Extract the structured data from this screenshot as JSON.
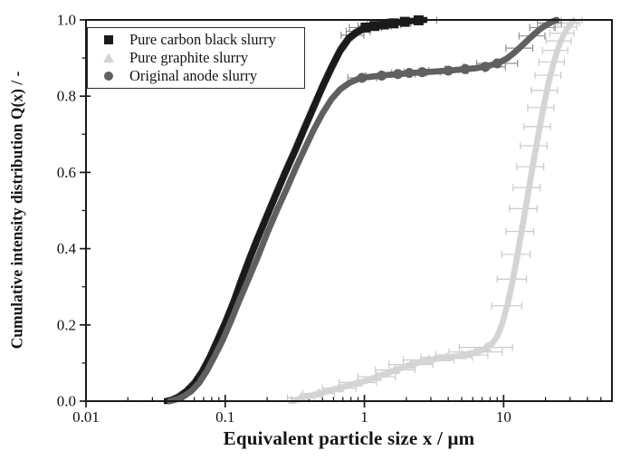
{
  "legend": {
    "items": [
      {
        "label": "Pure carbon black slurry",
        "marker": "square",
        "color": "#1b1b1b"
      },
      {
        "label": "Pure graphite slurry",
        "marker": "triangle",
        "color": "#d4d4d4"
      },
      {
        "label": "Original anode slurry",
        "marker": "circle",
        "color": "#606060"
      }
    ]
  },
  "chart_data": {
    "type": "scatter",
    "title": "",
    "xlabel": "Equivalent particle size x / μm",
    "ylabel": "Cumulative intensity distribution Q(x) / -",
    "x_scale": "log",
    "xlim": [
      0.01,
      60
    ],
    "ylim": [
      0.0,
      1.0
    ],
    "grid": false,
    "legend_position": "top-left",
    "axis_color": "#1a1a1a",
    "x_ticks": {
      "major": [
        {
          "v": 0.01,
          "label": "0.01"
        },
        {
          "v": 0.1,
          "label": "0.1"
        },
        {
          "v": 1,
          "label": "1"
        },
        {
          "v": 10,
          "label": "10"
        }
      ],
      "minor": [
        0.02,
        0.03,
        0.04,
        0.05,
        0.06,
        0.07,
        0.08,
        0.09,
        0.2,
        0.3,
        0.4,
        0.5,
        0.6,
        0.7,
        0.8,
        0.9,
        2,
        3,
        4,
        5,
        6,
        7,
        8,
        9,
        20,
        30,
        40,
        50
      ]
    },
    "y_ticks": {
      "major": [
        {
          "v": 0.0,
          "label": "0.0"
        },
        {
          "v": 0.2,
          "label": "0.2"
        },
        {
          "v": 0.4,
          "label": "0.4"
        },
        {
          "v": 0.6,
          "label": "0.6"
        },
        {
          "v": 0.8,
          "label": "0.8"
        },
        {
          "v": 1.0,
          "label": "1.0"
        }
      ],
      "minor": [
        0.1,
        0.3,
        0.5,
        0.7,
        0.9
      ]
    },
    "series": [
      {
        "name": "Pure carbon black slurry",
        "marker": "square",
        "color": "#1b1b1b",
        "errbar_color": "#8a8a8a",
        "points": [
          [
            0.038,
            0.0
          ],
          [
            0.042,
            0.004
          ],
          [
            0.047,
            0.012
          ],
          [
            0.053,
            0.026
          ],
          [
            0.06,
            0.046
          ],
          [
            0.068,
            0.075
          ],
          [
            0.077,
            0.112
          ],
          [
            0.087,
            0.155
          ],
          [
            0.1,
            0.205
          ],
          [
            0.115,
            0.26
          ],
          [
            0.13,
            0.315
          ],
          [
            0.15,
            0.375
          ],
          [
            0.17,
            0.425
          ],
          [
            0.2,
            0.487
          ],
          [
            0.23,
            0.54
          ],
          [
            0.27,
            0.6
          ],
          [
            0.32,
            0.66
          ],
          [
            0.37,
            0.715
          ],
          [
            0.43,
            0.77
          ],
          [
            0.5,
            0.825
          ],
          [
            0.58,
            0.875
          ],
          [
            0.67,
            0.92
          ],
          [
            0.77,
            0.951
          ],
          [
            0.88,
            0.968
          ],
          [
            1.0,
            0.978
          ],
          [
            1.15,
            0.984
          ],
          [
            1.35,
            0.988
          ],
          [
            1.6,
            0.992
          ],
          [
            1.9,
            0.995
          ],
          [
            2.3,
            0.998
          ],
          [
            2.7,
            1.0
          ]
        ],
        "error_bars": [
          [
            0.82,
            0.96,
            0.68,
            0.99,
            0
          ],
          [
            0.9,
            0.97,
            0.74,
            1.1,
            0
          ],
          [
            1.02,
            0.98,
            0.78,
            1.33,
            1
          ],
          [
            1.18,
            0.984,
            0.9,
            1.56,
            1
          ],
          [
            1.38,
            0.988,
            1.05,
            1.82,
            1
          ],
          [
            1.62,
            0.991,
            1.22,
            2.15,
            1
          ],
          [
            1.95,
            0.995,
            1.45,
            2.6,
            1
          ],
          [
            2.45,
            0.999,
            1.85,
            3.3,
            1
          ]
        ]
      },
      {
        "name": "Pure graphite slurry",
        "marker": "triangle",
        "color": "#d4d4d4",
        "errbar_color": "#c9c9c9",
        "points": [
          [
            0.3,
            0.0
          ],
          [
            0.35,
            0.008
          ],
          [
            0.42,
            0.016
          ],
          [
            0.5,
            0.023
          ],
          [
            0.6,
            0.031
          ],
          [
            0.72,
            0.039
          ],
          [
            0.86,
            0.047
          ],
          [
            1.0,
            0.053
          ],
          [
            1.2,
            0.063
          ],
          [
            1.45,
            0.074
          ],
          [
            1.75,
            0.085
          ],
          [
            2.1,
            0.095
          ],
          [
            2.5,
            0.103
          ],
          [
            3.0,
            0.109
          ],
          [
            3.6,
            0.113
          ],
          [
            4.3,
            0.117
          ],
          [
            5.2,
            0.122
          ],
          [
            6.2,
            0.128
          ],
          [
            7.2,
            0.137
          ],
          [
            8.2,
            0.152
          ],
          [
            9.0,
            0.175
          ],
          [
            9.8,
            0.21
          ],
          [
            10.7,
            0.26
          ],
          [
            11.6,
            0.32
          ],
          [
            12.6,
            0.39
          ],
          [
            13.6,
            0.46
          ],
          [
            14.7,
            0.53
          ],
          [
            15.8,
            0.6
          ],
          [
            17.0,
            0.665
          ],
          [
            18.3,
            0.73
          ],
          [
            19.7,
            0.79
          ],
          [
            21.2,
            0.845
          ],
          [
            22.8,
            0.89
          ],
          [
            24.5,
            0.928
          ],
          [
            26.3,
            0.957
          ],
          [
            28.2,
            0.978
          ],
          [
            30.2,
            0.992
          ],
          [
            32.0,
            1.0
          ]
        ],
        "error_bars": [
          [
            0.35,
            0.008,
            0.28,
            0.44,
            1
          ],
          [
            0.47,
            0.02,
            0.36,
            0.61,
            1
          ],
          [
            0.66,
            0.034,
            0.5,
            0.87,
            1
          ],
          [
            0.9,
            0.049,
            0.66,
            1.22,
            1
          ],
          [
            1.23,
            0.064,
            0.9,
            1.67,
            1
          ],
          [
            1.66,
            0.082,
            1.2,
            2.3,
            1
          ],
          [
            2.17,
            0.096,
            1.5,
            3.1,
            1
          ],
          [
            2.9,
            0.108,
            1.9,
            4.4,
            1
          ],
          [
            3.9,
            0.115,
            2.55,
            5.95,
            1
          ],
          [
            5.0,
            0.121,
            3.25,
            7.7,
            1
          ],
          [
            6.3,
            0.129,
            4.05,
            9.8,
            1
          ],
          [
            7.5,
            0.141,
            4.8,
            11.6,
            1
          ],
          [
            10.5,
            0.25,
            8.2,
            13.5,
            0
          ],
          [
            11.5,
            0.32,
            9.0,
            14.6,
            0
          ],
          [
            12.3,
            0.385,
            9.7,
            15.5,
            0
          ],
          [
            13.1,
            0.445,
            10.4,
            16.4,
            0
          ],
          [
            13.9,
            0.505,
            11.0,
            17.4,
            0
          ],
          [
            14.7,
            0.56,
            11.7,
            18.3,
            0
          ],
          [
            15.6,
            0.615,
            12.4,
            19.4,
            0
          ],
          [
            16.5,
            0.67,
            13.2,
            20.5,
            0
          ],
          [
            17.5,
            0.72,
            14.0,
            21.7,
            0
          ],
          [
            18.6,
            0.77,
            14.9,
            23.0,
            0
          ],
          [
            19.8,
            0.815,
            15.8,
            24.4,
            0
          ],
          [
            21.0,
            0.855,
            16.8,
            25.8,
            0
          ],
          [
            22.3,
            0.89,
            17.9,
            27.3,
            0
          ],
          [
            23.7,
            0.92,
            19.0,
            28.9,
            0
          ],
          [
            25.2,
            0.945,
            20.2,
            30.5,
            0
          ],
          [
            26.8,
            0.965,
            21.5,
            32.0,
            0
          ],
          [
            28.4,
            0.981,
            22.9,
            33.5,
            0
          ],
          [
            30.1,
            0.992,
            24.3,
            35.0,
            0
          ],
          [
            31.8,
            0.999,
            25.8,
            36.5,
            0
          ]
        ]
      },
      {
        "name": "Original anode slurry",
        "marker": "circle",
        "color": "#606060",
        "errbar_color": "#8f8f8f",
        "points": [
          [
            0.04,
            0.0
          ],
          [
            0.045,
            0.005
          ],
          [
            0.05,
            0.012
          ],
          [
            0.057,
            0.026
          ],
          [
            0.065,
            0.048
          ],
          [
            0.074,
            0.08
          ],
          [
            0.084,
            0.118
          ],
          [
            0.096,
            0.16
          ],
          [
            0.11,
            0.21
          ],
          [
            0.125,
            0.26
          ],
          [
            0.145,
            0.315
          ],
          [
            0.17,
            0.375
          ],
          [
            0.2,
            0.44
          ],
          [
            0.235,
            0.5
          ],
          [
            0.275,
            0.555
          ],
          [
            0.32,
            0.61
          ],
          [
            0.37,
            0.66
          ],
          [
            0.43,
            0.71
          ],
          [
            0.5,
            0.755
          ],
          [
            0.58,
            0.792
          ],
          [
            0.67,
            0.818
          ],
          [
            0.78,
            0.835
          ],
          [
            0.9,
            0.845
          ],
          [
            1.05,
            0.85
          ],
          [
            1.25,
            0.853
          ],
          [
            1.5,
            0.856
          ],
          [
            1.8,
            0.858
          ],
          [
            2.2,
            0.861
          ],
          [
            2.7,
            0.863
          ],
          [
            3.3,
            0.865
          ],
          [
            4.0,
            0.867
          ],
          [
            5.0,
            0.87
          ],
          [
            6.2,
            0.873
          ],
          [
            7.5,
            0.878
          ],
          [
            9.0,
            0.886
          ],
          [
            10.5,
            0.898
          ],
          [
            12.0,
            0.915
          ],
          [
            13.5,
            0.932
          ],
          [
            15.0,
            0.948
          ],
          [
            16.5,
            0.962
          ],
          [
            18.0,
            0.974
          ],
          [
            19.5,
            0.983
          ],
          [
            21.0,
            0.99
          ],
          [
            22.5,
            0.996
          ],
          [
            24.0,
            1.0
          ]
        ],
        "error_bars": [
          [
            0.96,
            0.848,
            0.76,
            1.22,
            1
          ],
          [
            1.33,
            0.854,
            1.02,
            1.74,
            1
          ],
          [
            1.74,
            0.858,
            1.31,
            2.31,
            1
          ],
          [
            2.1,
            0.861,
            1.57,
            2.81,
            1
          ],
          [
            2.6,
            0.863,
            1.93,
            3.5,
            1
          ],
          [
            4.0,
            0.867,
            2.9,
            5.5,
            1
          ],
          [
            5.3,
            0.871,
            3.8,
            7.3,
            1
          ],
          [
            7.4,
            0.877,
            5.2,
            10.3,
            1
          ],
          [
            9.0,
            0.886,
            6.4,
            12.6,
            1
          ],
          [
            13.0,
            0.926,
            10.4,
            16.2,
            0
          ],
          [
            16.0,
            0.958,
            12.9,
            19.8,
            0
          ],
          [
            19.0,
            0.98,
            15.4,
            23.4,
            0
          ],
          [
            21.5,
            0.992,
            17.5,
            26.0,
            0
          ]
        ]
      }
    ]
  }
}
